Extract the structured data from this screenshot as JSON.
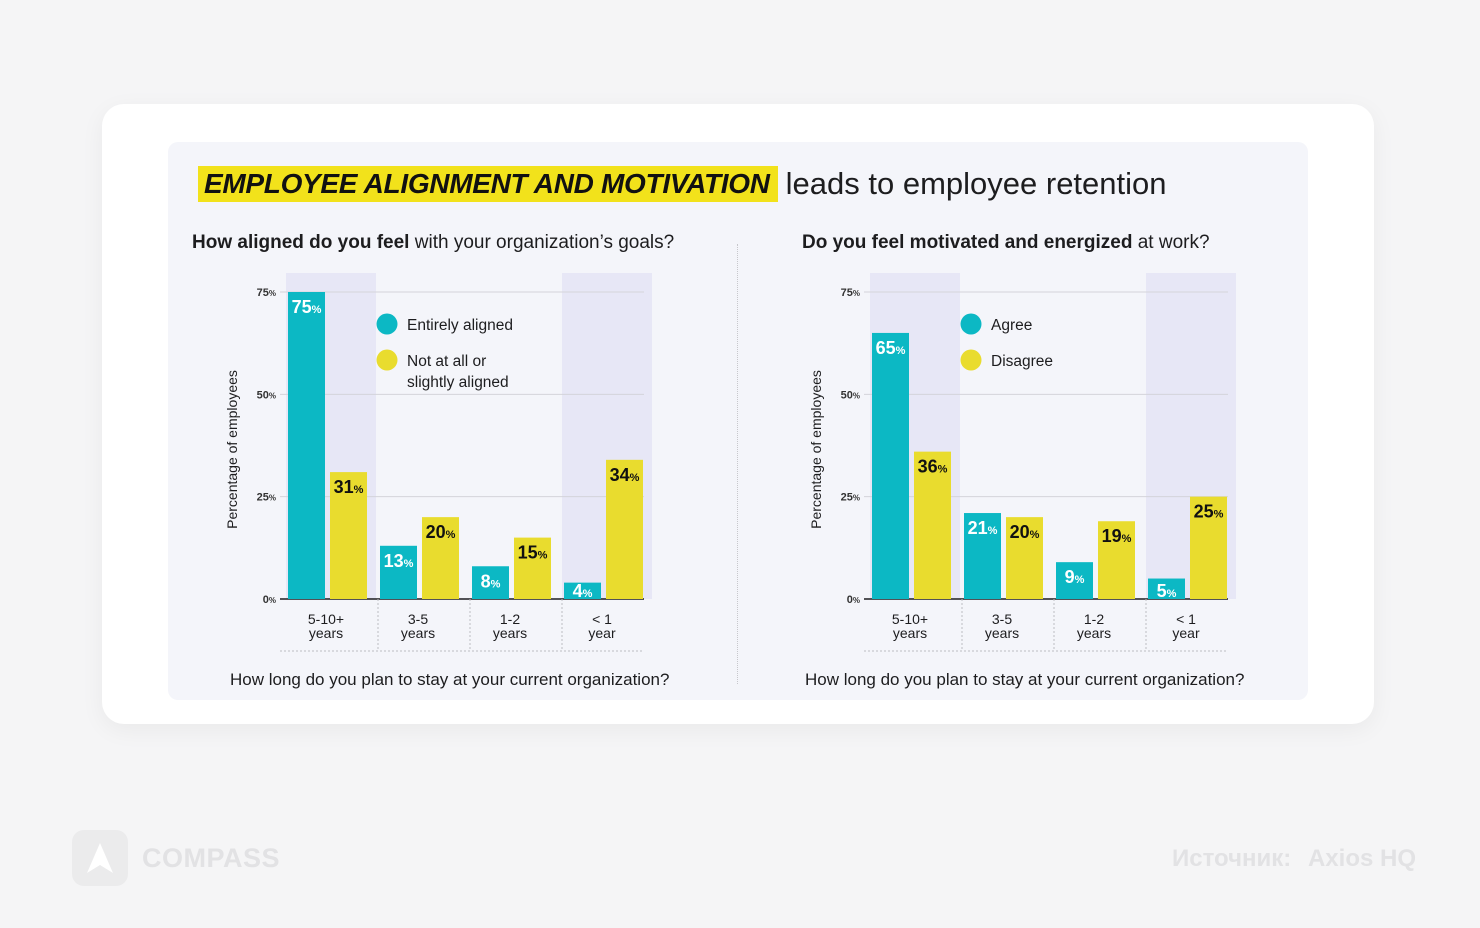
{
  "headline": {
    "highlight": "EMPLOYEE ALIGNMENT AND MOTIVATION",
    "rest": "leads to employee retention"
  },
  "colors": {
    "teal": "#0cb8c4",
    "yellow": "#e9dc2e",
    "highlight_yellow": "#f2e21b",
    "band": "#e7e7f6",
    "grid": "#d4d4da",
    "axis": "#1d1d1f"
  },
  "chart_data": [
    {
      "type": "bar",
      "question_bold": "How aligned do you feel",
      "question_rest": "with your organization’s goals?",
      "ylabel": "Percentage of employees",
      "xlabel": "How long do you plan to stay at your current organization?",
      "ylim": [
        0,
        75
      ],
      "yticks": [
        0,
        25,
        50,
        75
      ],
      "ytick_labels": [
        "0",
        "25",
        "50",
        "75"
      ],
      "tick_suffix": "%",
      "categories": [
        [
          "5-10+",
          "years"
        ],
        [
          "3-5",
          "years"
        ],
        [
          "1-2",
          "years"
        ],
        [
          "< 1",
          "year"
        ]
      ],
      "highlight_bands": [
        0,
        3
      ],
      "series": [
        {
          "name": "Entirely aligned",
          "color_key": "teal",
          "values": [
            75,
            13,
            8,
            4
          ]
        },
        {
          "name": "Not at all or slightly aligned",
          "legend_lines": [
            "Not at all or",
            "slightly aligned"
          ],
          "color_key": "yellow",
          "values": [
            31,
            20,
            15,
            34
          ]
        }
      ],
      "value_suffix": "%"
    },
    {
      "type": "bar",
      "question_bold": "Do you feel motivated and energized",
      "question_rest": "at work?",
      "ylabel": "Percentage of employees",
      "xlabel": "How long do you plan to stay at your current organization?",
      "ylim": [
        0,
        75
      ],
      "yticks": [
        0,
        25,
        50,
        75
      ],
      "ytick_labels": [
        "0",
        "25",
        "50",
        "75"
      ],
      "tick_suffix": "%",
      "categories": [
        [
          "5-10+",
          "years"
        ],
        [
          "3-5",
          "years"
        ],
        [
          "1-2",
          "years"
        ],
        [
          "< 1",
          "year"
        ]
      ],
      "highlight_bands": [
        0,
        3
      ],
      "series": [
        {
          "name": "Agree",
          "legend_lines": [
            "Agree"
          ],
          "color_key": "teal",
          "values": [
            65,
            21,
            9,
            5
          ]
        },
        {
          "name": "Disagree",
          "legend_lines": [
            "Disagree"
          ],
          "color_key": "yellow",
          "values": [
            36,
            20,
            19,
            25
          ]
        }
      ],
      "value_suffix": "%"
    }
  ],
  "footer": {
    "brand": "COMPASS",
    "source_label": "Источник:",
    "source_value": "Axios HQ"
  }
}
